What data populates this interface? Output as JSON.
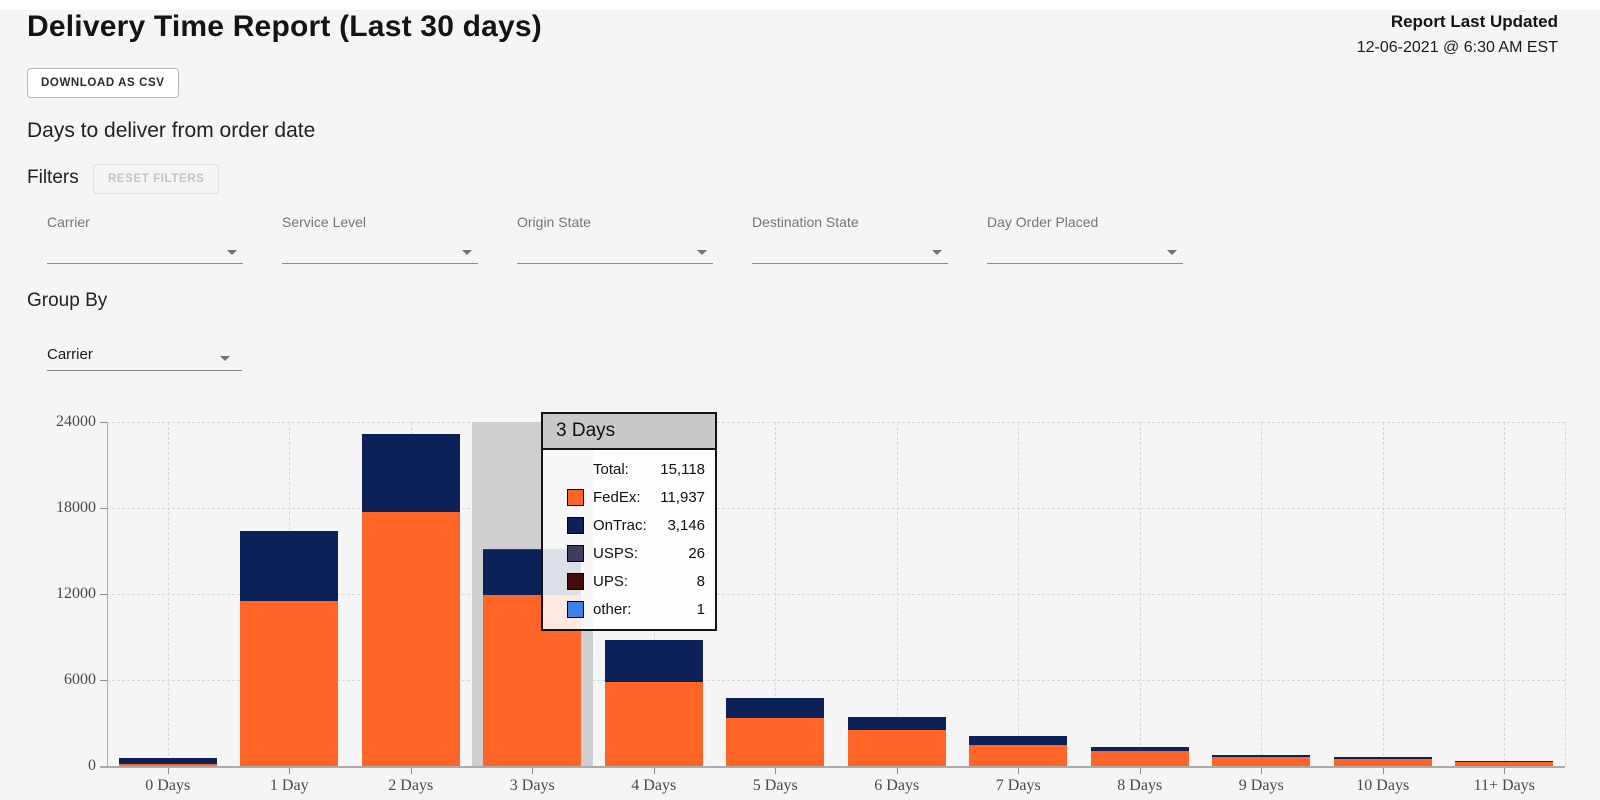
{
  "page": {
    "title": "Delivery Time Report (Last 30 days)",
    "updated_label": "Report Last Updated",
    "updated_value": "12-06-2021 @ 6:30 AM EST",
    "download_button": "DOWNLOAD AS CSV",
    "subtitle": "Days to deliver from order date",
    "filters_label": "Filters",
    "reset_filters_button": "RESET FILTERS",
    "group_by_label": "Group By",
    "group_by_value": "Carrier"
  },
  "filters": [
    {
      "label": "Carrier",
      "value": ""
    },
    {
      "label": "Service Level",
      "value": ""
    },
    {
      "label": "Origin State",
      "value": ""
    },
    {
      "label": "Destination State",
      "value": ""
    },
    {
      "label": "Day Order Placed",
      "value": ""
    }
  ],
  "colors": {
    "background": "#f5f5f5",
    "fedex": "#fe6526",
    "ontrac": "#0b2158",
    "usps": "#3f3c5e",
    "ups": "#410d0b",
    "other": "#3981e6",
    "hover_band": "#cfcfcf",
    "tooltip_header_bg": "#c9c9c9"
  },
  "chart_data": {
    "type": "bar",
    "stacked": true,
    "title": "Days to deliver from order date",
    "categories": [
      "0 Days",
      "1 Day",
      "2 Days",
      "3 Days",
      "4 Days",
      "5 Days",
      "6 Days",
      "7 Days",
      "8 Days",
      "9 Days",
      "10 Days",
      "11+ Days"
    ],
    "series": [
      {
        "name": "FedEx",
        "color": "#fe6526",
        "values": [
          140,
          11480,
          17710,
          11937,
          5880,
          3360,
          2520,
          1470,
          1050,
          640,
          520,
          280
        ]
      },
      {
        "name": "OnTrac",
        "color": "#0b2158",
        "values": [
          430,
          4900,
          5460,
          3146,
          2940,
          1400,
          910,
          630,
          280,
          110,
          80,
          60
        ]
      },
      {
        "name": "USPS",
        "color": "#3f3c5e",
        "values": [
          0,
          0,
          0,
          26,
          0,
          0,
          0,
          0,
          0,
          0,
          0,
          0
        ]
      },
      {
        "name": "UPS",
        "color": "#410d0b",
        "values": [
          0,
          0,
          0,
          8,
          0,
          0,
          0,
          0,
          0,
          0,
          0,
          0
        ]
      },
      {
        "name": "other",
        "color": "#3981e6",
        "values": [
          0,
          0,
          0,
          1,
          0,
          0,
          0,
          0,
          0,
          0,
          0,
          0
        ]
      }
    ],
    "ylim": [
      0,
      24000
    ],
    "yticks": [
      0,
      6000,
      12000,
      18000,
      24000
    ],
    "grid": true,
    "legend_position": "none",
    "highlighted_category": "3 Days"
  },
  "tooltip": {
    "title": "3 Days",
    "rows": [
      {
        "label": "Total:",
        "value": "15,118",
        "swatch": null
      },
      {
        "label": "FedEx:",
        "value": "11,937",
        "swatch": "#fe6526"
      },
      {
        "label": "OnTrac:",
        "value": "3,146",
        "swatch": "#0b2158"
      },
      {
        "label": "USPS:",
        "value": "26",
        "swatch": "#3f3c5e"
      },
      {
        "label": "UPS:",
        "value": "8",
        "swatch": "#410d0b"
      },
      {
        "label": "other:",
        "value": "1",
        "swatch": "#3981e6"
      }
    ]
  }
}
